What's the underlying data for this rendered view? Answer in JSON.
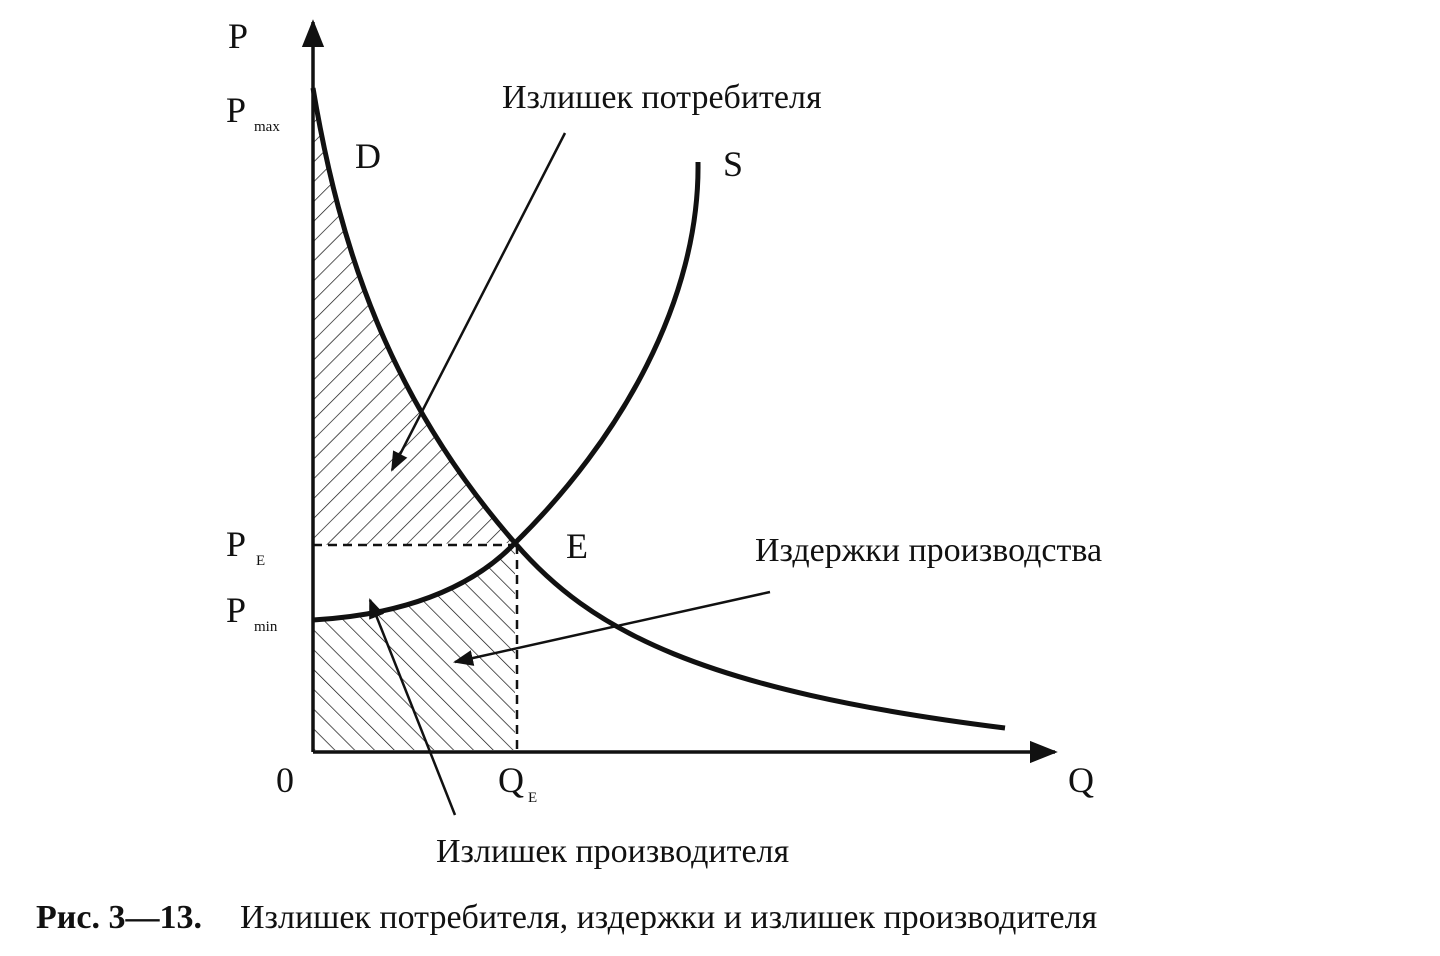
{
  "diagram": {
    "y_axis": {
      "label": "P"
    },
    "x_axis": {
      "label": "Q"
    },
    "origin": "0",
    "p_max": {
      "main": "P",
      "sub": "max"
    },
    "p_e": {
      "main": "P",
      "sub": "E"
    },
    "p_min": {
      "main": "P",
      "sub": "min"
    },
    "q_e": {
      "main": "Q",
      "sub": "E"
    },
    "demand_label": "D",
    "supply_label": "S",
    "equilibrium_label": "E",
    "consumer_surplus": "Излишек потребителя",
    "production_costs": "Издержки производства",
    "producer_surplus": "Излишек производителя"
  },
  "caption": {
    "number": "Рис. 3—13.",
    "text": "Излишек потребителя, издержки и излишек производителя"
  }
}
